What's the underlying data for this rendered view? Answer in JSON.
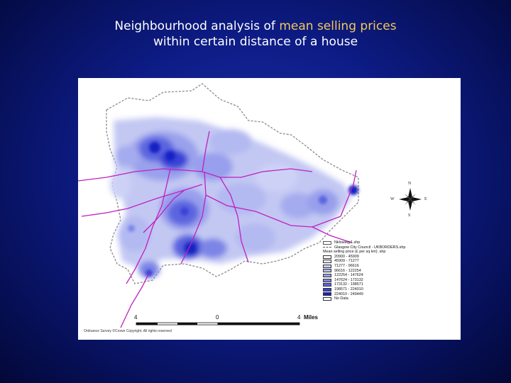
{
  "title": {
    "line1_prefix": "Neighbourhood analysis of ",
    "line1_highlight": "mean selling prices",
    "line2": "within certain distance of a house"
  },
  "colors": {
    "background": "#0d1c86",
    "title_text": "#ffffff",
    "title_highlight": "#f3c85a",
    "roads": "#c020c0",
    "boundary": "#8a8a8a"
  },
  "map": {
    "legend": {
      "layers": [
        "Nklowsqy1.shp",
        "Glasgow City Council - UKBORDERS.shp"
      ],
      "heading": "Mean selling price (£ per sq km) .shp",
      "classes": [
        {
          "label": "20900 - 45909",
          "color": "#ffffff"
        },
        {
          "label": "45909 - 71277",
          "color": "#e6e8fb"
        },
        {
          "label": "71277 - 96616",
          "color": "#cdd1f6"
        },
        {
          "label": "96616 - 122254",
          "color": "#b3b9f1"
        },
        {
          "label": "122254 - 147624",
          "color": "#989fec"
        },
        {
          "label": "147624 - 173132",
          "color": "#7c84e6"
        },
        {
          "label": "173132 - 198571",
          "color": "#5c65df"
        },
        {
          "label": "198571 - 224010",
          "color": "#3a43d6"
        },
        {
          "label": "224010 - 249449",
          "color": "#1820c4"
        },
        {
          "label": "No Data",
          "color": "#ffffff"
        }
      ]
    },
    "scale_bar": {
      "left_label": "4",
      "mid_label": "0",
      "right_label": "4",
      "unit": "Miles"
    },
    "compass": {
      "n": "N",
      "e": "E",
      "s": "S",
      "w": "W"
    },
    "copyright": "Ordnance Survey ©Crown Copyright. All rights reserved"
  }
}
